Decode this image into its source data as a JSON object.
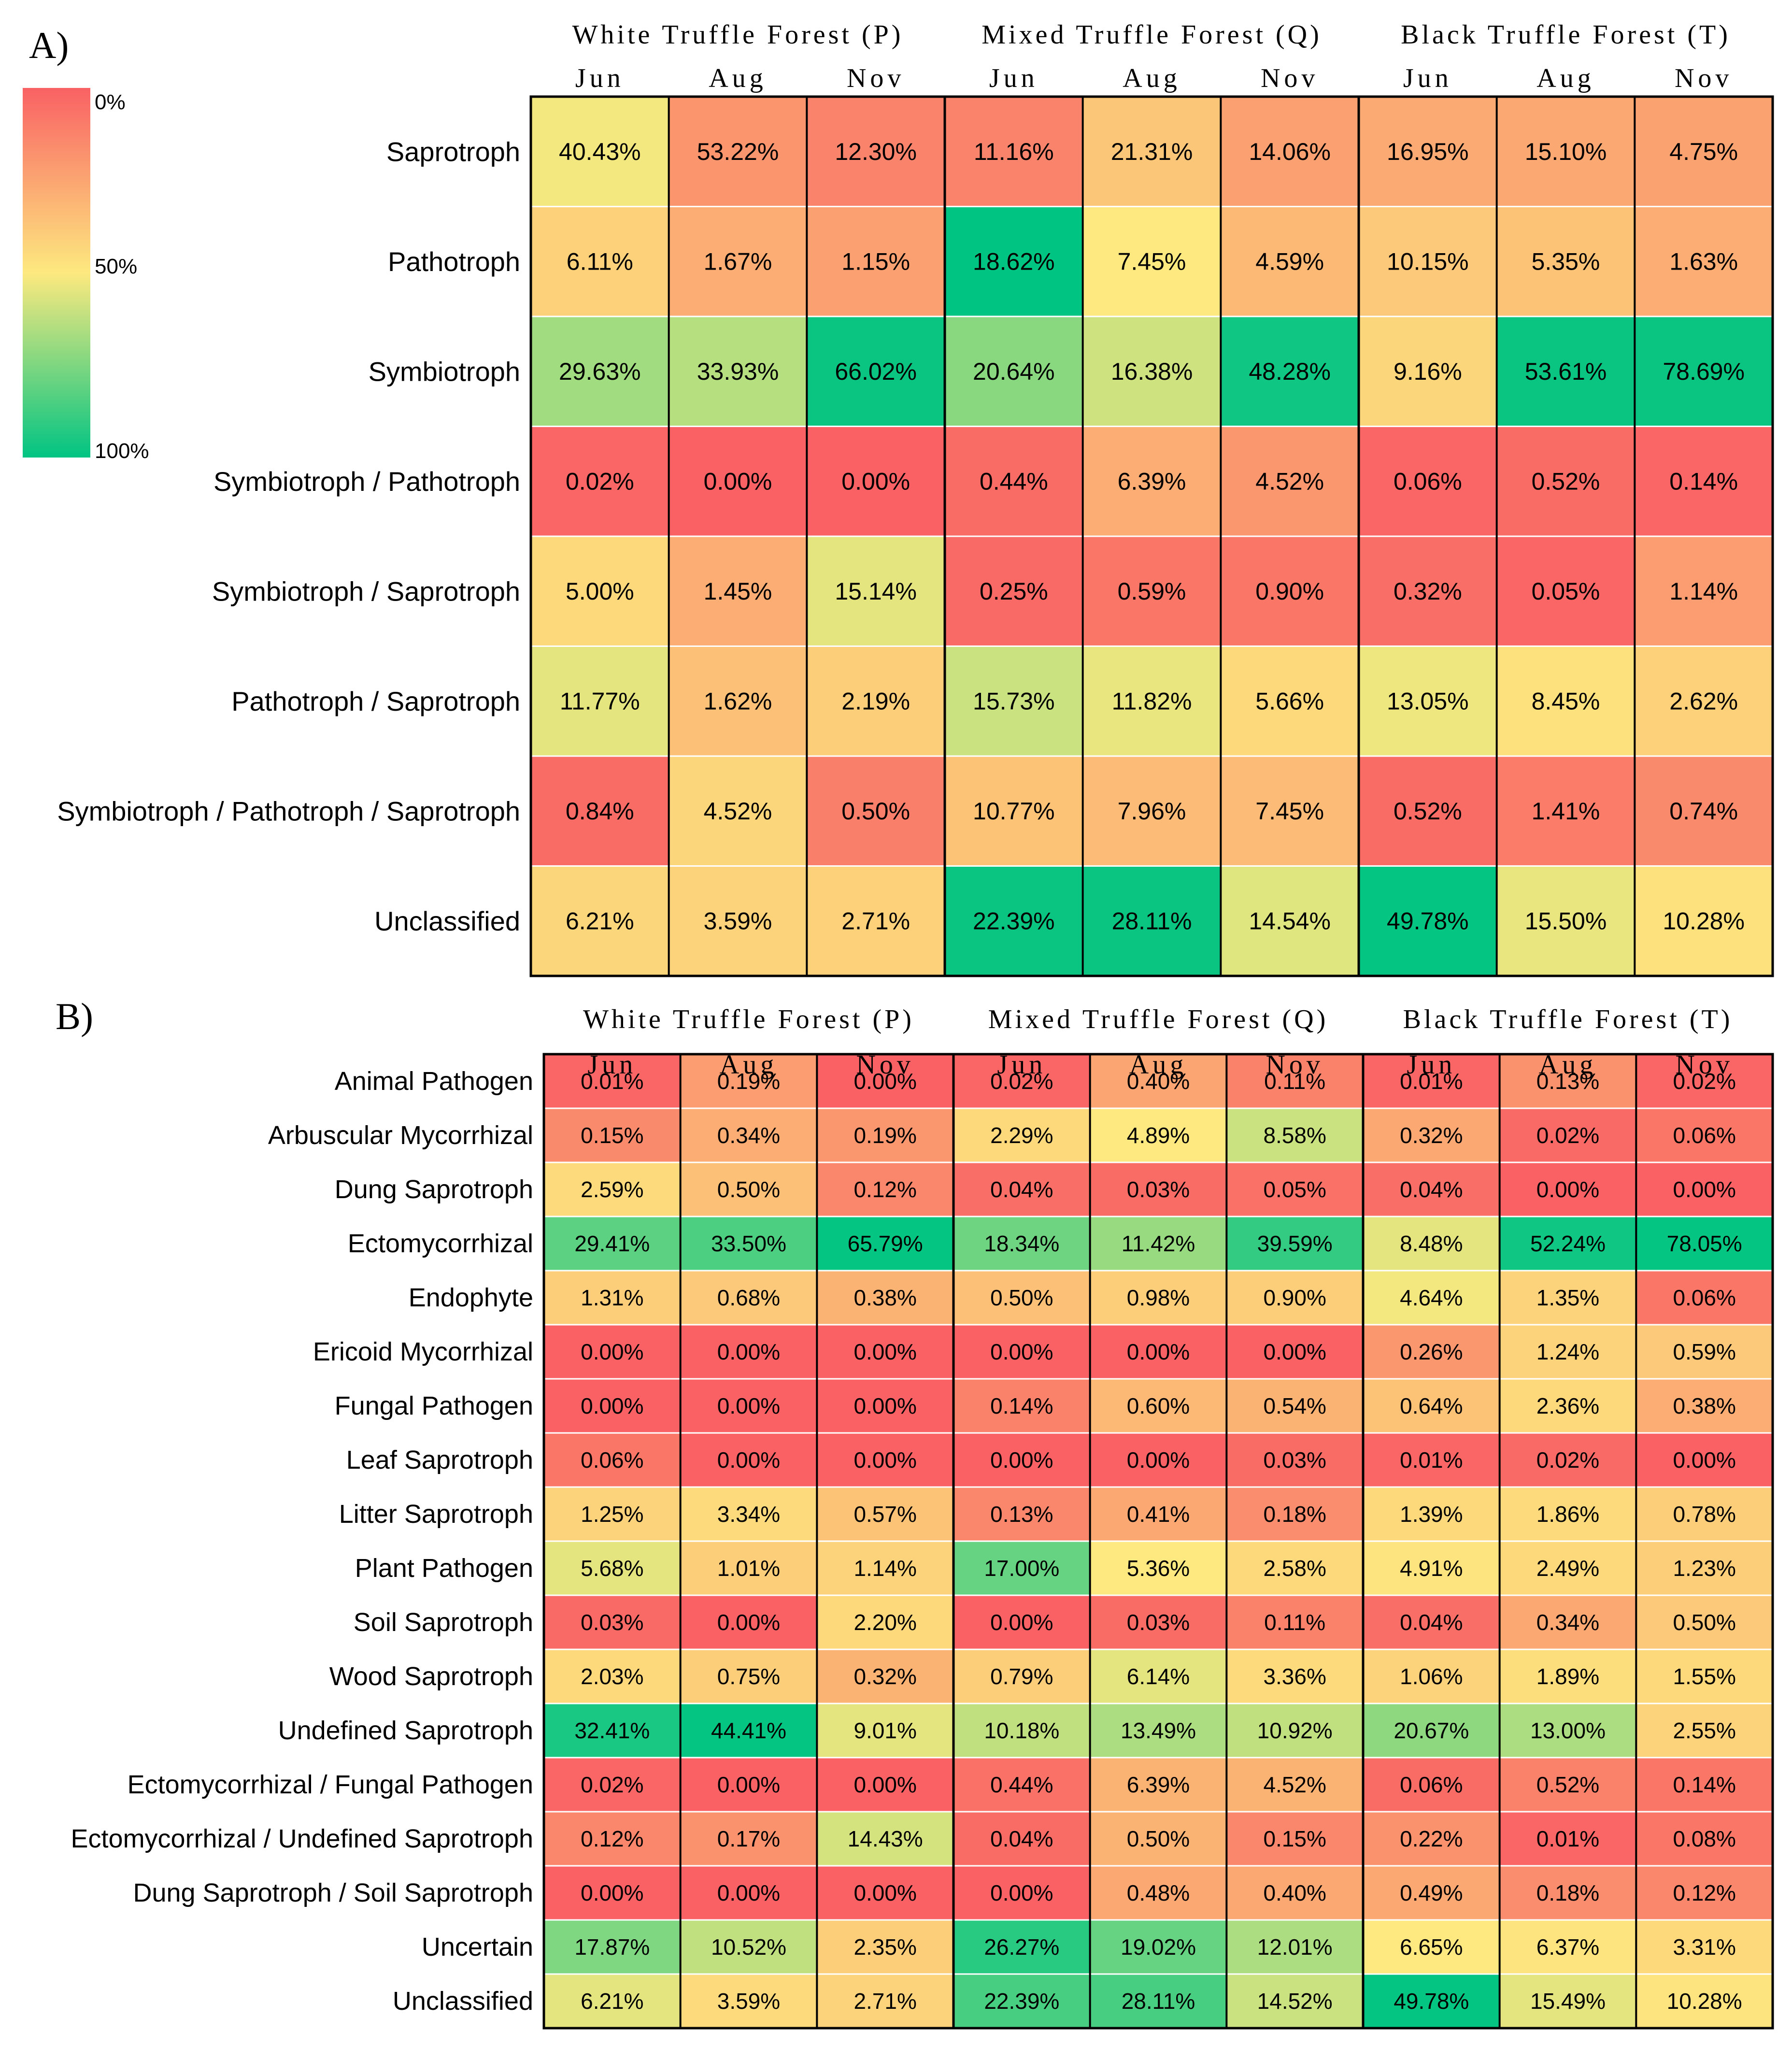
{
  "chart_data": [
    {
      "type": "heatmap",
      "panel": "A)",
      "groups": [
        "White Truffle Forest (P)",
        "Mixed Truffle Forest (Q)",
        "Black Truffle Forest (T)"
      ],
      "columns": [
        "Jun",
        "Aug",
        "Nov",
        "Jun",
        "Aug",
        "Nov",
        "Jun",
        "Aug",
        "Nov"
      ],
      "rows": [
        "Saprotroph",
        "Pathotroph",
        "Symbiotroph",
        "Symbiotroph / Pathotroph",
        "Symbiotroph / Saprotroph",
        "Pathotroph / Saprotroph",
        "Symbiotroph / Pathotroph / Saprotroph",
        "Unclassified"
      ],
      "values": [
        [
          "40.43%",
          "53.22%",
          "12.30%",
          "11.16%",
          "21.31%",
          "14.06%",
          "16.95%",
          "15.10%",
          "4.75%"
        ],
        [
          "6.11%",
          "1.67%",
          "1.15%",
          "18.62%",
          "7.45%",
          "4.59%",
          "10.15%",
          "5.35%",
          "1.63%"
        ],
        [
          "29.63%",
          "33.93%",
          "66.02%",
          "20.64%",
          "16.38%",
          "48.28%",
          "9.16%",
          "53.61%",
          "78.69%"
        ],
        [
          "0.02%",
          "0.00%",
          "0.00%",
          "0.44%",
          "6.39%",
          "4.52%",
          "0.06%",
          "0.52%",
          "0.14%"
        ],
        [
          "5.00%",
          "1.45%",
          "15.14%",
          "0.25%",
          "0.59%",
          "0.90%",
          "0.32%",
          "0.05%",
          "1.14%"
        ],
        [
          "11.77%",
          "1.62%",
          "2.19%",
          "15.73%",
          "11.82%",
          "5.66%",
          "13.05%",
          "8.45%",
          "2.62%"
        ],
        [
          "0.84%",
          "4.52%",
          "0.50%",
          "10.77%",
          "7.96%",
          "7.45%",
          "0.52%",
          "1.41%",
          "0.74%"
        ],
        [
          "6.21%",
          "3.59%",
          "2.71%",
          "22.39%",
          "28.11%",
          "14.54%",
          "49.78%",
          "15.50%",
          "10.28%"
        ]
      ],
      "color_scale": [
        [
          52,
          19,
          13,
          13,
          37,
          23,
          27,
          26,
          24
        ],
        [
          41,
          28,
          23,
          100,
          50,
          32,
          38,
          36,
          28
        ],
        [
          68,
          64,
          98,
          73,
          59,
          97,
          43,
          98,
          98
        ],
        [
          2,
          0,
          0,
          4,
          28,
          20,
          2,
          4,
          2
        ],
        [
          44,
          28,
          55,
          3,
          8,
          8,
          5,
          2,
          22
        ],
        [
          55,
          35,
          40,
          60,
          54,
          44,
          53,
          47,
          41
        ],
        [
          4,
          43,
          11,
          36,
          33,
          33,
          4,
          10,
          15
        ],
        [
          43,
          42,
          41,
          98,
          98,
          56,
          99,
          54,
          47
        ]
      ],
      "legend": {
        "min_label": "0%",
        "mid_label": "50%",
        "max_label": "100%",
        "low_color": "#f96164",
        "mid_color": "#fde97f",
        "high_color": "#00c482"
      }
    },
    {
      "type": "heatmap",
      "panel": "B)",
      "groups": [
        "White Truffle Forest (P)",
        "Mixed Truffle Forest (Q)",
        "Black Truffle Forest (T)"
      ],
      "columns": [
        "Jun",
        "Aug",
        "Nov",
        "Jun",
        "Aug",
        "Nov",
        "Jun",
        "Aug",
        "Nov"
      ],
      "rows": [
        "Animal Pathogen",
        "Arbuscular Mycorrhizal",
        "Dung Saprotroph",
        "Ectomycorrhizal",
        "Endophyte",
        "Ericoid Mycorrhizal",
        "Fungal Pathogen",
        "Leaf Saprotroph",
        "Litter Saprotroph",
        "Plant Pathogen",
        "Soil Saprotroph",
        "Wood Saprotroph",
        "Undefined Saprotroph",
        "Ectomycorrhizal / Fungal Pathogen",
        "Ectomycorrhizal / Undefined Saprotroph",
        "Dung Saprotroph / Soil Saprotroph",
        "Uncertain",
        "Unclassified"
      ],
      "values": [
        [
          "0.01%",
          "0.19%",
          "0.00%",
          "0.02%",
          "0.40%",
          "0.11%",
          "0.01%",
          "0.13%",
          "0.02%"
        ],
        [
          "0.15%",
          "0.34%",
          "0.19%",
          "2.29%",
          "4.89%",
          "8.58%",
          "0.32%",
          "0.02%",
          "0.06%"
        ],
        [
          "2.59%",
          "0.50%",
          "0.12%",
          "0.04%",
          "0.03%",
          "0.05%",
          "0.04%",
          "0.00%",
          "0.00%"
        ],
        [
          "29.41%",
          "33.50%",
          "65.79%",
          "18.34%",
          "11.42%",
          "39.59%",
          "8.48%",
          "52.24%",
          "78.05%"
        ],
        [
          "1.31%",
          "0.68%",
          "0.38%",
          "0.50%",
          "0.98%",
          "0.90%",
          "4.64%",
          "1.35%",
          "0.06%"
        ],
        [
          "0.00%",
          "0.00%",
          "0.00%",
          "0.00%",
          "0.00%",
          "0.00%",
          "0.26%",
          "1.24%",
          "0.59%"
        ],
        [
          "0.00%",
          "0.00%",
          "0.00%",
          "0.14%",
          "0.60%",
          "0.54%",
          "0.64%",
          "2.36%",
          "0.38%"
        ],
        [
          "0.06%",
          "0.00%",
          "0.00%",
          "0.00%",
          "0.00%",
          "0.03%",
          "0.01%",
          "0.02%",
          "0.00%"
        ],
        [
          "1.25%",
          "3.34%",
          "0.57%",
          "0.13%",
          "0.41%",
          "0.18%",
          "1.39%",
          "1.86%",
          "0.78%"
        ],
        [
          "5.68%",
          "1.01%",
          "1.14%",
          "17.00%",
          "5.36%",
          "2.58%",
          "4.91%",
          "2.49%",
          "1.23%"
        ],
        [
          "0.03%",
          "0.00%",
          "2.20%",
          "0.00%",
          "0.03%",
          "0.11%",
          "0.04%",
          "0.34%",
          "0.50%"
        ],
        [
          "2.03%",
          "0.75%",
          "0.32%",
          "0.79%",
          "6.14%",
          "3.36%",
          "1.06%",
          "1.89%",
          "1.55%"
        ],
        [
          "32.41%",
          "44.41%",
          "9.01%",
          "10.18%",
          "13.49%",
          "10.92%",
          "20.67%",
          "13.00%",
          "2.55%"
        ],
        [
          "0.02%",
          "0.00%",
          "0.00%",
          "0.44%",
          "6.39%",
          "4.52%",
          "0.06%",
          "0.52%",
          "0.14%"
        ],
        [
          "0.12%",
          "0.17%",
          "14.43%",
          "0.04%",
          "0.50%",
          "0.15%",
          "0.22%",
          "0.01%",
          "0.08%"
        ],
        [
          "0.00%",
          "0.00%",
          "0.00%",
          "0.00%",
          "0.48%",
          "0.40%",
          "0.49%",
          "0.18%",
          "0.12%"
        ],
        [
          "17.87%",
          "10.52%",
          "2.35%",
          "26.27%",
          "19.02%",
          "12.01%",
          "6.65%",
          "6.37%",
          "3.31%"
        ],
        [
          "6.21%",
          "3.59%",
          "2.71%",
          "22.39%",
          "28.11%",
          "14.52%",
          "49.78%",
          "15.49%",
          "10.28%"
        ]
      ],
      "color_scale": [
        [
          2,
          22,
          0,
          2,
          25,
          12,
          2,
          18,
          2
        ],
        [
          15,
          28,
          20,
          44,
          50,
          60,
          26,
          3,
          8
        ],
        [
          45,
          35,
          14,
          5,
          4,
          6,
          5,
          0,
          0
        ],
        [
          82,
          85,
          99,
          78,
          70,
          90,
          55,
          97,
          99
        ],
        [
          40,
          38,
          30,
          35,
          40,
          40,
          52,
          42,
          8
        ],
        [
          0,
          0,
          0,
          0,
          0,
          0,
          20,
          42,
          38
        ],
        [
          0,
          0,
          0,
          12,
          32,
          30,
          36,
          44,
          28
        ],
        [
          8,
          0,
          0,
          0,
          0,
          4,
          2,
          3,
          0
        ],
        [
          42,
          45,
          36,
          14,
          26,
          16,
          44,
          45,
          40
        ],
        [
          55,
          40,
          42,
          80,
          50,
          44,
          48,
          44,
          40
        ],
        [
          3,
          0,
          44,
          0,
          4,
          12,
          5,
          26,
          38
        ],
        [
          44,
          40,
          30,
          40,
          55,
          45,
          42,
          46,
          44
        ],
        [
          95,
          99,
          55,
          62,
          66,
          62,
          72,
          66,
          42
        ],
        [
          2,
          0,
          0,
          6,
          30,
          30,
          4,
          12,
          8
        ],
        [
          14,
          18,
          58,
          4,
          30,
          14,
          18,
          2,
          8
        ],
        [
          0,
          0,
          0,
          0,
          26,
          26,
          26,
          16,
          14
        ],
        [
          75,
          62,
          40,
          92,
          80,
          66,
          50,
          48,
          44
        ],
        [
          55,
          45,
          42,
          86,
          86,
          60,
          99,
          55,
          48
        ]
      ]
    }
  ]
}
